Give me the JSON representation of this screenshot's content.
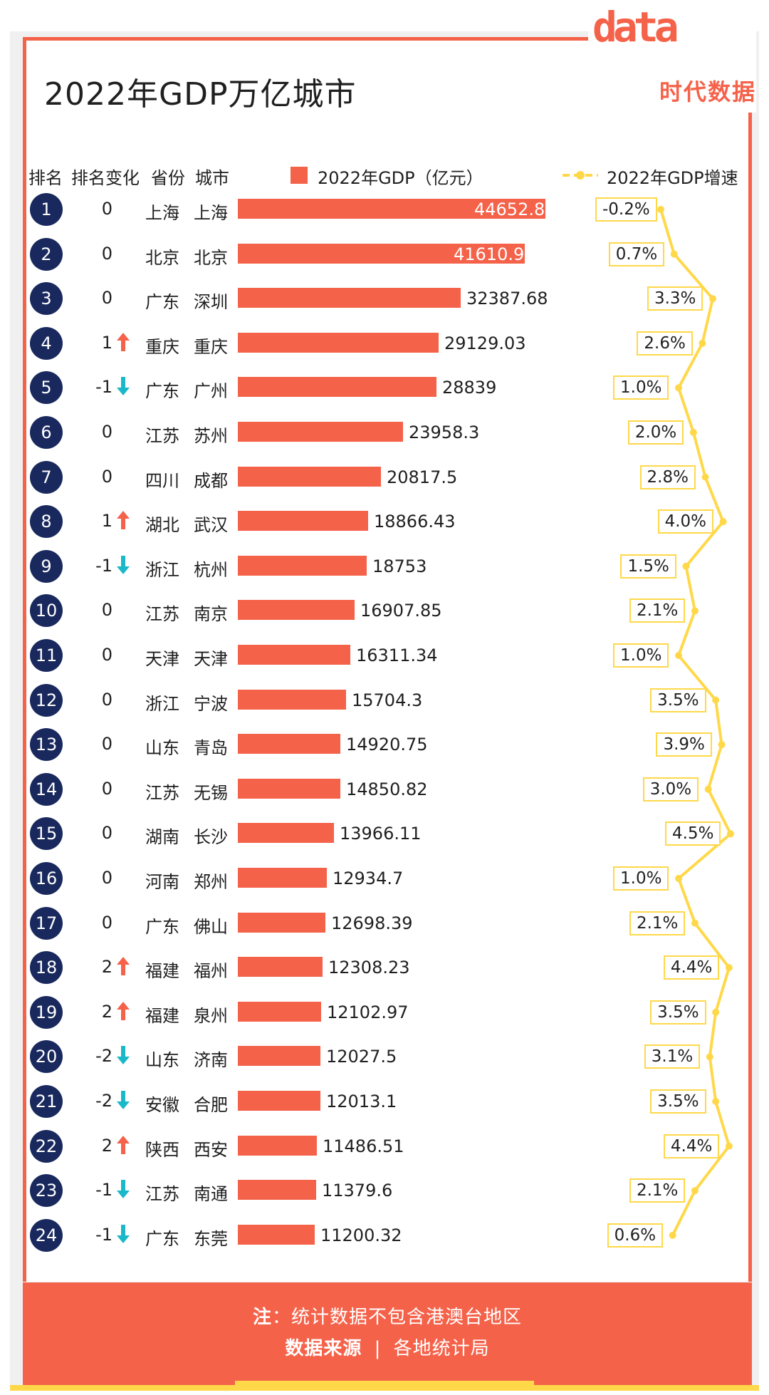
{
  "title": "2022年GDP万亿城市",
  "logo": {
    "word": "data",
    "cn": "时代数据"
  },
  "headers": {
    "rank": "排名",
    "rank_change": "排名变化",
    "province": "省份",
    "city": "城市",
    "gdp_legend": "2022年GDP（亿元）",
    "growth_legend": "2022年GDP增速"
  },
  "colors": {
    "bar": "#f5624a",
    "rank_circle": "#19295e",
    "line": "#ffd84a",
    "up": "#f5624a",
    "down": "#1ab8c8"
  },
  "footer": {
    "note_label": "注",
    "note_text": "：统计数据不包含港澳台地区",
    "source_label": "数据来源",
    "source_sep": "|",
    "source_text": "各地统计局"
  },
  "chart_data": {
    "type": "bar",
    "title": "2022年GDP万亿城市",
    "series": [
      {
        "name": "2022年GDP（亿元）",
        "values": [
          44652.8,
          41610.9,
          32387.68,
          29129.03,
          28839,
          23958.3,
          20817.5,
          18866.43,
          18753,
          16907.85,
          16311.34,
          15704.3,
          14920.75,
          14850.82,
          13966.11,
          12934.7,
          12698.39,
          12308.23,
          12102.97,
          12027.5,
          12013.1,
          11486.51,
          11379.6,
          11200.32
        ]
      },
      {
        "name": "2022年GDP增速",
        "values": [
          -0.2,
          0.7,
          3.3,
          2.6,
          1.0,
          2.0,
          2.8,
          4.0,
          1.5,
          2.1,
          1.0,
          3.5,
          3.9,
          3.0,
          4.5,
          1.0,
          2.1,
          4.4,
          3.5,
          3.1,
          3.5,
          4.4,
          2.1,
          0.6
        ]
      }
    ],
    "rows": [
      {
        "rank": "1",
        "change": "0",
        "dir": "",
        "province": "上海",
        "city": "上海",
        "gdp": "44652.8",
        "growth": "-0.2%"
      },
      {
        "rank": "2",
        "change": "0",
        "dir": "",
        "province": "北京",
        "city": "北京",
        "gdp": "41610.9",
        "growth": "0.7%"
      },
      {
        "rank": "3",
        "change": "0",
        "dir": "",
        "province": "广东",
        "city": "深圳",
        "gdp": "32387.68",
        "growth": "3.3%"
      },
      {
        "rank": "4",
        "change": "1",
        "dir": "up",
        "province": "重庆",
        "city": "重庆",
        "gdp": "29129.03",
        "growth": "2.6%"
      },
      {
        "rank": "5",
        "change": "-1",
        "dir": "down",
        "province": "广东",
        "city": "广州",
        "gdp": "28839",
        "growth": "1.0%"
      },
      {
        "rank": "6",
        "change": "0",
        "dir": "",
        "province": "江苏",
        "city": "苏州",
        "gdp": "23958.3",
        "growth": "2.0%"
      },
      {
        "rank": "7",
        "change": "0",
        "dir": "",
        "province": "四川",
        "city": "成都",
        "gdp": "20817.5",
        "growth": "2.8%"
      },
      {
        "rank": "8",
        "change": "1",
        "dir": "up",
        "province": "湖北",
        "city": "武汉",
        "gdp": "18866.43",
        "growth": "4.0%"
      },
      {
        "rank": "9",
        "change": "-1",
        "dir": "down",
        "province": "浙江",
        "city": "杭州",
        "gdp": "18753",
        "growth": "1.5%"
      },
      {
        "rank": "10",
        "change": "0",
        "dir": "",
        "province": "江苏",
        "city": "南京",
        "gdp": "16907.85",
        "growth": "2.1%"
      },
      {
        "rank": "11",
        "change": "0",
        "dir": "",
        "province": "天津",
        "city": "天津",
        "gdp": "16311.34",
        "growth": "1.0%"
      },
      {
        "rank": "12",
        "change": "0",
        "dir": "",
        "province": "浙江",
        "city": "宁波",
        "gdp": "15704.3",
        "growth": "3.5%"
      },
      {
        "rank": "13",
        "change": "0",
        "dir": "",
        "province": "山东",
        "city": "青岛",
        "gdp": "14920.75",
        "growth": "3.9%"
      },
      {
        "rank": "14",
        "change": "0",
        "dir": "",
        "province": "江苏",
        "city": "无锡",
        "gdp": "14850.82",
        "growth": "3.0%"
      },
      {
        "rank": "15",
        "change": "0",
        "dir": "",
        "province": "湖南",
        "city": "长沙",
        "gdp": "13966.11",
        "growth": "4.5%"
      },
      {
        "rank": "16",
        "change": "0",
        "dir": "",
        "province": "河南",
        "city": "郑州",
        "gdp": "12934.7",
        "growth": "1.0%"
      },
      {
        "rank": "17",
        "change": "0",
        "dir": "",
        "province": "广东",
        "city": "佛山",
        "gdp": "12698.39",
        "growth": "2.1%"
      },
      {
        "rank": "18",
        "change": "2",
        "dir": "up",
        "province": "福建",
        "city": "福州",
        "gdp": "12308.23",
        "growth": "4.4%"
      },
      {
        "rank": "19",
        "change": "2",
        "dir": "up",
        "province": "福建",
        "city": "泉州",
        "gdp": "12102.97",
        "growth": "3.5%"
      },
      {
        "rank": "20",
        "change": "-2",
        "dir": "down",
        "province": "山东",
        "city": "济南",
        "gdp": "12027.5",
        "growth": "3.1%"
      },
      {
        "rank": "21",
        "change": "-2",
        "dir": "down",
        "province": "安徽",
        "city": "合肥",
        "gdp": "12013.1",
        "growth": "3.5%"
      },
      {
        "rank": "22",
        "change": "2",
        "dir": "up",
        "province": "陕西",
        "city": "西安",
        "gdp": "11486.51",
        "growth": "4.4%"
      },
      {
        "rank": "23",
        "change": "-1",
        "dir": "down",
        "province": "江苏",
        "city": "南通",
        "gdp": "11379.6",
        "growth": "2.1%"
      },
      {
        "rank": "24",
        "change": "-1",
        "dir": "down",
        "province": "广东",
        "city": "东莞",
        "gdp": "11200.32",
        "growth": "0.6%"
      }
    ]
  }
}
